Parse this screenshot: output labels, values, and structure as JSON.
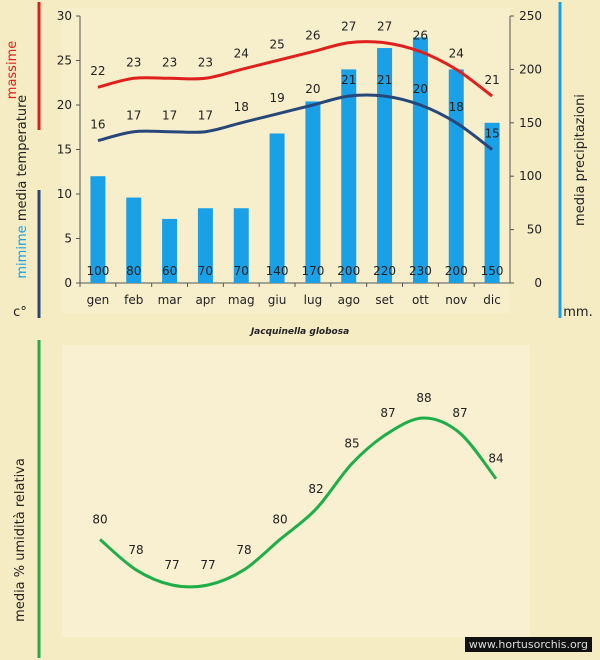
{
  "chart_data": [
    {
      "type": "bar+line",
      "months": [
        "gen",
        "feb",
        "mar",
        "apr",
        "mag",
        "giu",
        "lug",
        "ago",
        "set",
        "ott",
        "nov",
        "dic"
      ],
      "precipitation": {
        "values": [
          100,
          80,
          60,
          70,
          70,
          140,
          170,
          200,
          220,
          230,
          200,
          150
        ],
        "ylim": [
          0,
          250
        ],
        "ticks": [
          0,
          50,
          100,
          150,
          200,
          250
        ],
        "label": "media  precipitazioni",
        "unit": "mm.",
        "color": "#1aa0e6"
      },
      "temperature": {
        "ylim": [
          0,
          30
        ],
        "ticks": [
          0,
          5,
          10,
          15,
          20,
          25,
          30
        ],
        "label": "media  temperature",
        "unit": "c°",
        "max": {
          "name": "massime",
          "values": [
            22,
            23,
            23,
            23,
            24,
            25,
            26,
            27,
            27,
            26,
            24,
            21
          ],
          "color": "#e0201c"
        },
        "min": {
          "name": "mimime",
          "values": [
            16,
            17,
            17,
            17,
            18,
            19,
            20,
            21,
            21,
            20,
            18,
            15
          ],
          "color": "#27477a"
        }
      },
      "caption": "Jacquinella globosa"
    },
    {
      "type": "line",
      "label": "media %  umidità relativa",
      "values": [
        80,
        78,
        77,
        77,
        78,
        80,
        82,
        85,
        87,
        88,
        87,
        84
      ],
      "color": "#1fae4a"
    }
  ],
  "watermark": "www.hortusorchis.org"
}
